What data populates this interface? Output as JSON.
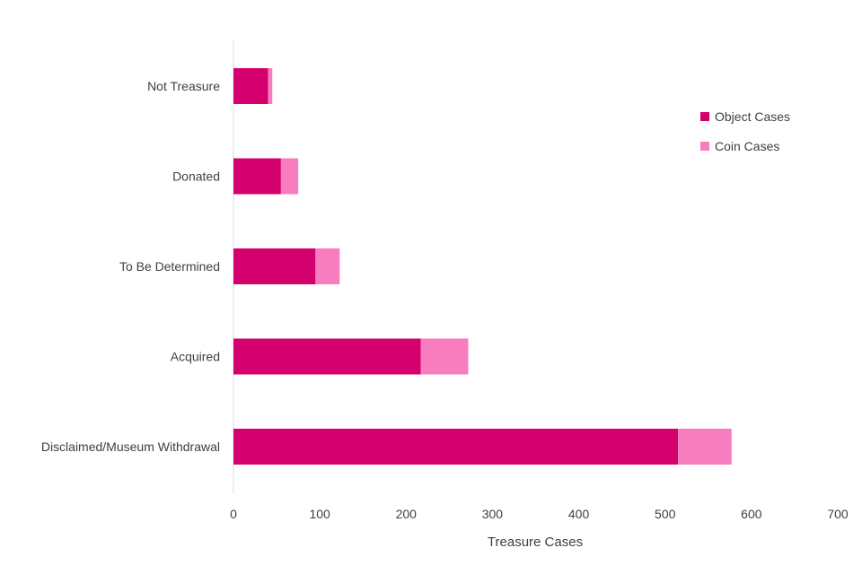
{
  "chart_data": {
    "type": "bar",
    "orientation": "horizontal",
    "stacked": true,
    "categories": [
      "Not Treasure",
      "Donated",
      "To Be Determined",
      "Acquired",
      "Disclaimed/Museum Withdrawal"
    ],
    "series": [
      {
        "name": "Object Cases",
        "color": "#D4006E",
        "values": [
          40,
          55,
          95,
          217,
          515
        ]
      },
      {
        "name": "Coin Cases",
        "color": "#F77DBE",
        "values": [
          5,
          20,
          28,
          55,
          62
        ]
      }
    ],
    "xlabel": "Treasure Cases",
    "ylabel": "",
    "xlim": [
      0,
      700
    ],
    "xticks": [
      "0",
      "100",
      "200",
      "300",
      "400",
      "500",
      "600",
      "700"
    ],
    "grid": false,
    "legend_position": "right"
  }
}
